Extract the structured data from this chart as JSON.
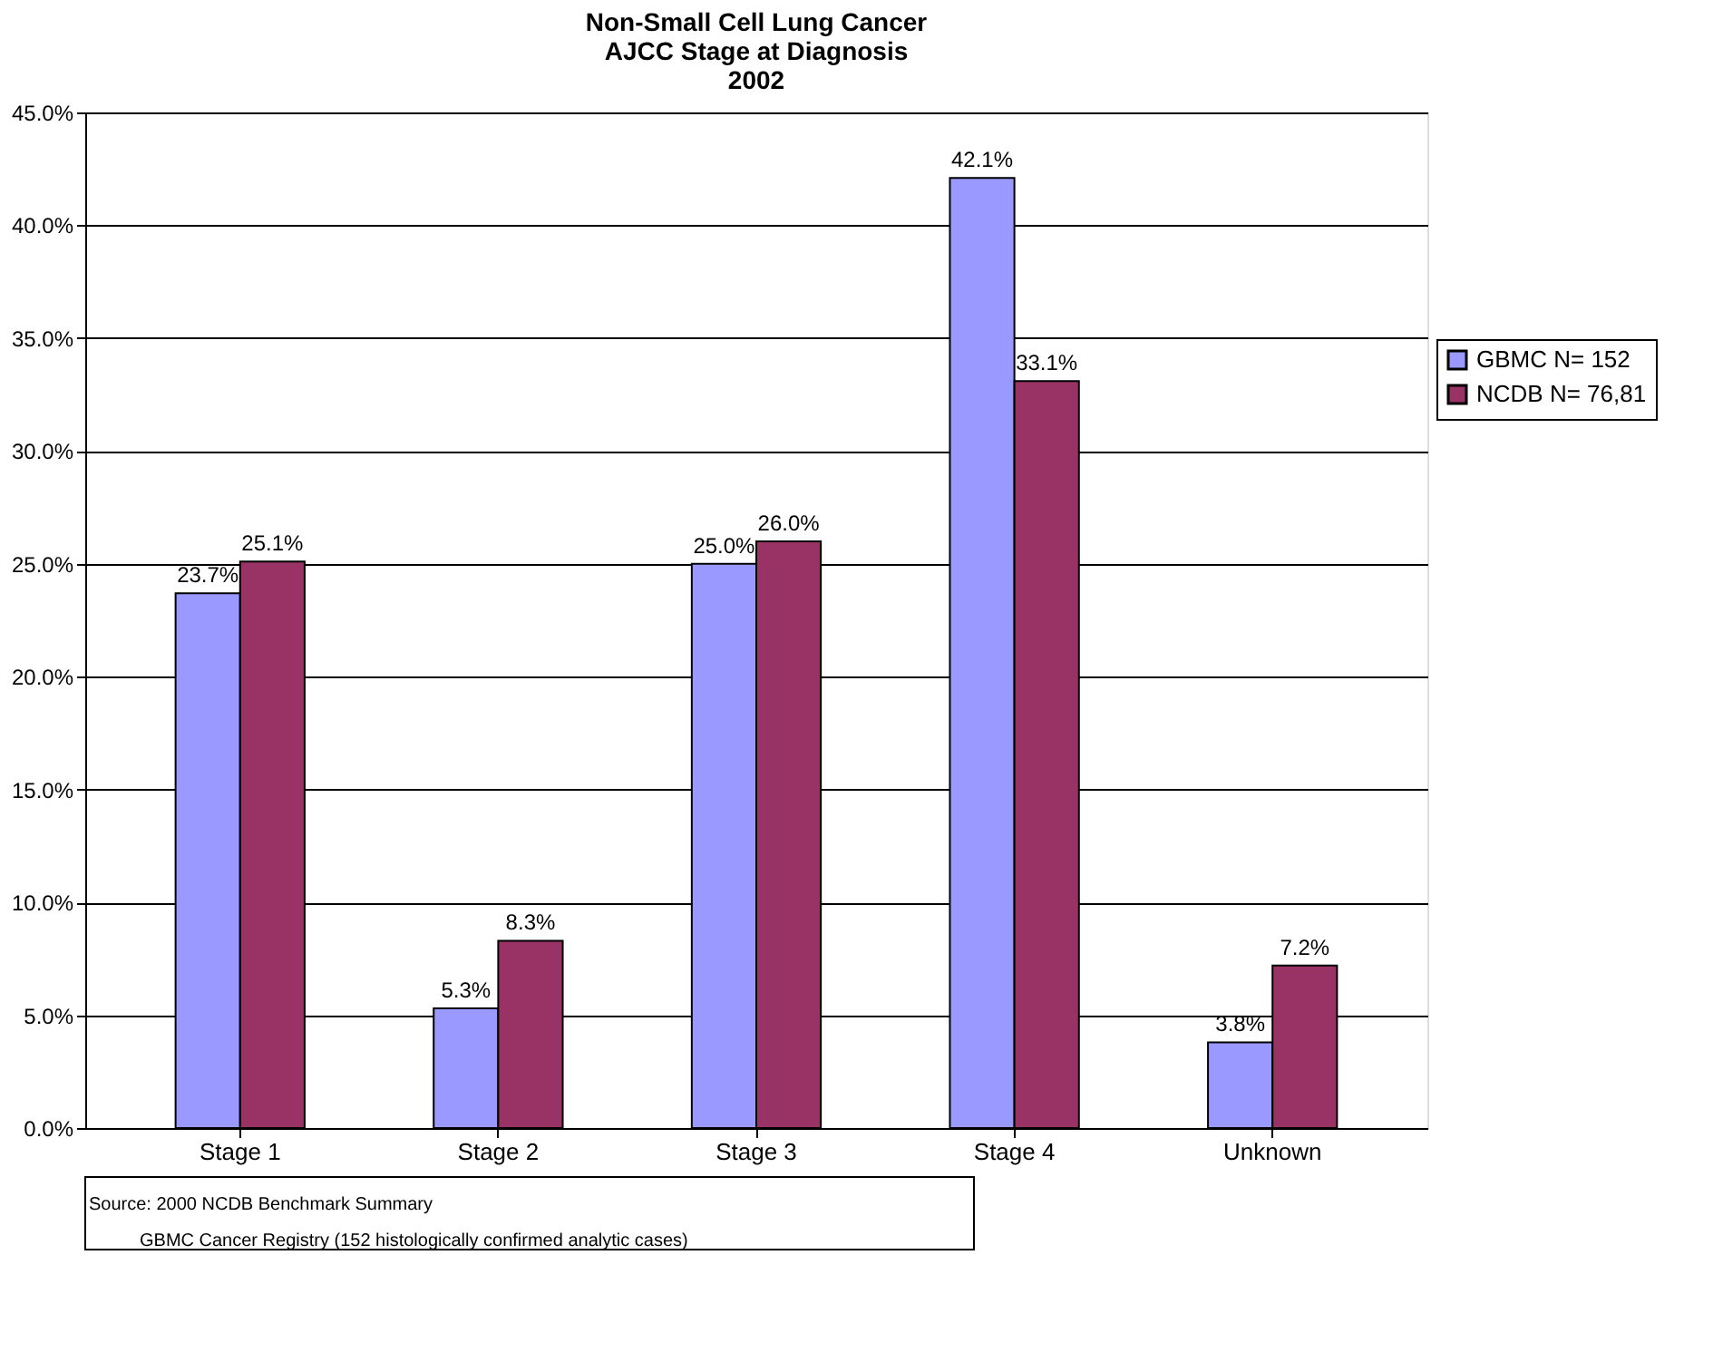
{
  "chart_data": {
    "type": "bar",
    "title": [
      "Non-Small Cell Lung Cancer",
      "AJCC Stage at Diagnosis",
      "2002"
    ],
    "categories": [
      "Stage 1",
      "Stage 2",
      "Stage 3",
      "Stage 4",
      "Unknown"
    ],
    "series": [
      {
        "name": "GBMC N= 152",
        "color": "#9999ff",
        "values": [
          23.7,
          5.3,
          25.0,
          42.1,
          3.8
        ],
        "value_labels": [
          "23.7%",
          "5.3%",
          "25.0%",
          "42.1%",
          "3.8%"
        ]
      },
      {
        "name": "NCDB N= 76,81",
        "color": "#993366",
        "values": [
          25.1,
          8.3,
          26.0,
          33.1,
          7.2
        ],
        "value_labels": [
          "25.1%",
          "8.3%",
          "26.0%",
          "33.1%",
          "7.2%"
        ]
      }
    ],
    "ylim": [
      0,
      45
    ],
    "yticks": [
      {
        "value": 0,
        "label": "0.0%"
      },
      {
        "value": 5,
        "label": "5.0%"
      },
      {
        "value": 10,
        "label": "10.0%"
      },
      {
        "value": 15,
        "label": "15.0%"
      },
      {
        "value": 20,
        "label": "20.0%"
      },
      {
        "value": 25,
        "label": "25.0%"
      },
      {
        "value": 30,
        "label": "30.0%"
      },
      {
        "value": 35,
        "label": "35.0%"
      },
      {
        "value": 40,
        "label": "40.0%"
      },
      {
        "value": 45,
        "label": "45.0%"
      }
    ],
    "grid": "y",
    "legend": "right",
    "annotations": [
      "Source: 2000 NCDB Benchmark Summary",
      "GBMC Cancer Registry (152 histologically confirmed analytic cases)"
    ]
  }
}
